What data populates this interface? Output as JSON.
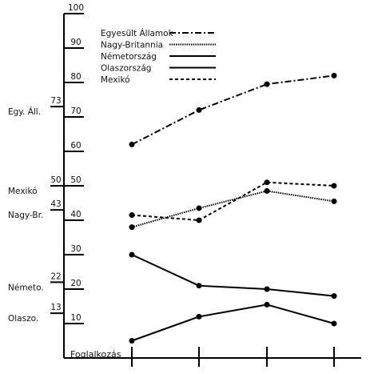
{
  "chart_data": {
    "type": "line",
    "xlabel": "Foglalkozás",
    "ylim": [
      0,
      100
    ],
    "yticks": [
      10,
      20,
      30,
      40,
      50,
      60,
      70,
      80,
      90,
      100
    ],
    "categories": [
      "",
      "",
      "",
      ""
    ],
    "series": [
      {
        "name": "Egyesült Államok",
        "values": [
          62,
          72,
          79.5,
          82
        ],
        "dash": "dashdot"
      },
      {
        "name": "Nagy-Britannia",
        "values": [
          38,
          43.5,
          48.5,
          45.5
        ],
        "dash": "dense-dotted"
      },
      {
        "name": "Németország",
        "values": [
          30,
          21,
          20,
          18
        ],
        "dash": "solid"
      },
      {
        "name": "Olaszország",
        "values": [
          5,
          12,
          15.5,
          10
        ],
        "dash": "solid"
      },
      {
        "name": "Mexikó",
        "values": [
          41.5,
          40,
          51,
          50
        ],
        "dash": "dashed"
      }
    ],
    "left_markers": [
      {
        "country": "Egy. Áll.",
        "value": 73
      },
      {
        "country": "Mexikó",
        "value": 50
      },
      {
        "country": "Nagy-Br.",
        "value": 43
      },
      {
        "country": "Németo.",
        "value": 22
      },
      {
        "country": "Olaszo.",
        "value": 13
      }
    ],
    "legend_placement": "top-center",
    "grid": false
  }
}
